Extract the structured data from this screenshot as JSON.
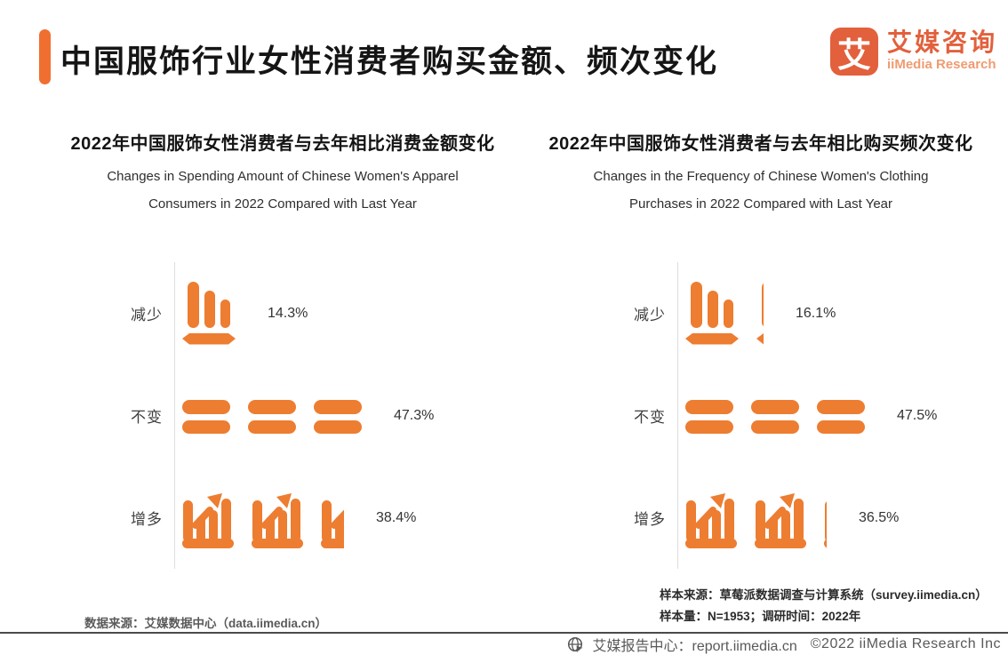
{
  "page": {
    "title": "中国服饰行业女性消费者购买金额、频次变化"
  },
  "colors": {
    "accent": "#F06F30",
    "icon_orange": "#ED7D31",
    "logo_orange": "#E2603C",
    "logo_sub_orange": "#F09B70",
    "axis_gray": "#DDDDDD",
    "footer_gray": "#595959"
  },
  "logo": {
    "mark_text": "艾",
    "name_cn": "艾媒咨询",
    "name_en": "iiMedia Research"
  },
  "charts": [
    {
      "title_cn": "2022年中国服饰女性消费者与去年相比消费金额变化",
      "title_en_line1": "Changes in Spending Amount of Chinese Women's Apparel",
      "title_en_line2": "Consumers in 2022 Compared with Last Year",
      "rows": [
        {
          "label": "减少",
          "value": "14.3%",
          "icon": "decrease",
          "count": 1,
          "partial": 0
        },
        {
          "label": "不变",
          "value": "47.3%",
          "icon": "equal",
          "count": 3,
          "partial": 0
        },
        {
          "label": "增多",
          "value": "38.4%",
          "icon": "increase",
          "count": 2,
          "partial": 0.45
        }
      ]
    },
    {
      "title_cn": "2022年中国服饰女性消费者与去年相比购买频次变化",
      "title_en_line1": "Changes in the Frequency of Chinese Women's Clothing",
      "title_en_line2": "Purchases in 2022 Compared with Last Year",
      "rows": [
        {
          "label": "减少",
          "value": "16.1%",
          "icon": "decrease",
          "count": 1,
          "partial": 0.14
        },
        {
          "label": "不变",
          "value": "47.5%",
          "icon": "equal",
          "count": 3,
          "partial": 0
        },
        {
          "label": "增多",
          "value": "36.5%",
          "icon": "increase",
          "count": 2,
          "partial": 0.05
        }
      ]
    }
  ],
  "notes": {
    "left": "数据来源：艾媒数据中心（data.iimedia.cn）",
    "right_line1": "样本来源：草莓派数据调查与计算系统（survey.iimedia.cn）",
    "right_line2": "样本量：N=1953；调研时间：2022年"
  },
  "footer": {
    "site": "艾媒报告中心：report.iimedia.cn",
    "copyright": "©2022  iiMedia Research  Inc"
  },
  "chart_data": [
    {
      "type": "bar",
      "title": "2022年中国服饰女性消费者与去年相比消费金额变化",
      "subtitle": "Changes in Spending Amount of Chinese Women's Apparel Consumers in 2022 Compared with Last Year",
      "categories": [
        "减少",
        "不变",
        "增多"
      ],
      "values": [
        14.3,
        47.3,
        38.4
      ],
      "unit": "%",
      "xlabel": "",
      "ylabel": "",
      "style": "pictogram, horizontal rows, orange icons",
      "legend": false,
      "grid": false
    },
    {
      "type": "bar",
      "title": "2022年中国服饰女性消费者与去年相比购买频次变化",
      "subtitle": "Changes in the Frequency of Chinese Women's Clothing Purchases in 2022 Compared with Last Year",
      "categories": [
        "减少",
        "不变",
        "增多"
      ],
      "values": [
        16.1,
        47.5,
        36.5
      ],
      "unit": "%",
      "xlabel": "",
      "ylabel": "",
      "style": "pictogram, horizontal rows, orange icons",
      "legend": false,
      "grid": false
    }
  ]
}
